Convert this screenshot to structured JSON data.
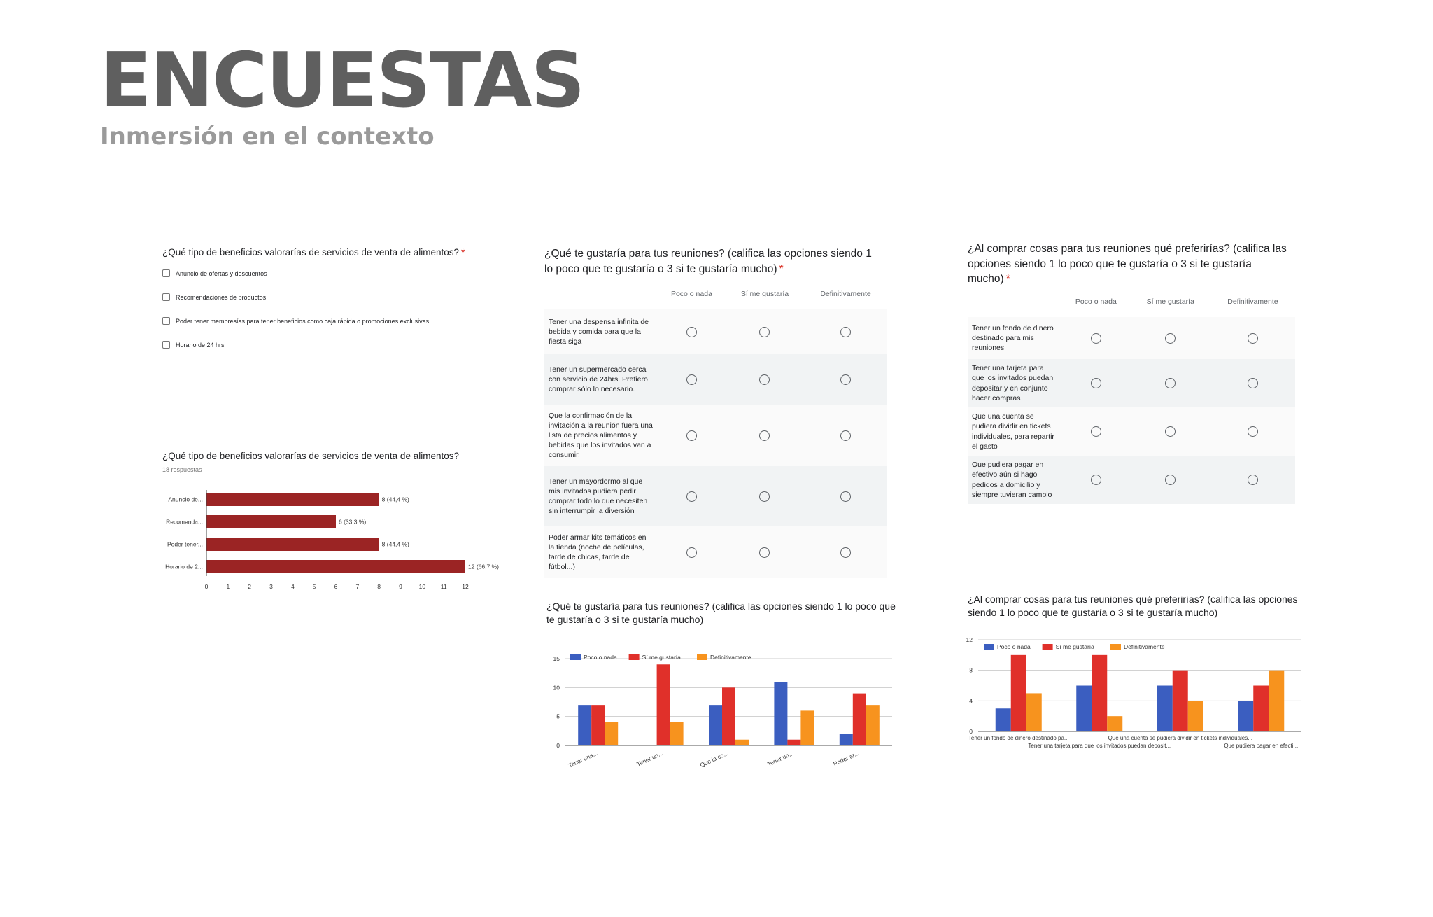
{
  "header": {
    "title": "ENCUESTAS",
    "subtitle": "Inmersión en el contexto"
  },
  "colors": {
    "title": "#5f5f5f",
    "subtitle": "#9a9a9a",
    "required": "#d93025",
    "bar_dark_red": "#9b2424",
    "blue": "#3b5ec0",
    "red": "#e0302a",
    "orange": "#f7931e"
  },
  "form_checkbox": {
    "question": "¿Qué tipo de beneficios valorarías de servicios de venta de alimentos?",
    "required_mark": "*",
    "options": [
      "Anuncio de ofertas y descuentos",
      "Recomendaciones de productos",
      "Poder tener membresías para tener beneficios como caja rápida o promociones exclusivas",
      "Horario de 24 hrs"
    ]
  },
  "form_grid_1": {
    "question": "¿Qué te gustaría para tus reuniones? (califica las opciones siendo 1 lo poco que te gustaría o 3 si te gustaría mucho)",
    "required_mark": "*",
    "columns": [
      "Poco o nada",
      "Sí me gustaría",
      "Definitivamente"
    ],
    "rows": [
      "Tener una despensa infinita de bebida y comida para que la fiesta siga",
      "Tener un supermercado cerca con servicio de 24hrs. Prefiero comprar sólo lo necesario.",
      "Que la confirmación de la invitación a la reunión fuera una lista de precios alimentos y bebidas que los invitados van a consumir.",
      "Tener un mayordormo al que mis invitados pudiera pedir comprar todo lo que necesiten sin interrumpir la diversión",
      "Poder armar kits temáticos en la tienda (noche de películas, tarde de chicas, tarde de fútbol...)"
    ]
  },
  "form_grid_2": {
    "question": "¿Al comprar cosas para tus reuniones qué preferirías? (califica las opciones siendo 1 lo poco que te gustaría o 3 si te gustaría mucho)",
    "required_mark": "*",
    "columns": [
      "Poco o nada",
      "Sí me gustaría",
      "Definitivamente"
    ],
    "rows": [
      "Tener un fondo de dinero destinado para mis reuniones",
      "Tener una tarjeta para que los invitados puedan depositar y en conjunto hacer compras",
      "Que una cuenta se pudiera dividir en tickets individuales, para repartir el gasto",
      "Que pudiera pagar en efectivo aún si hago pedidos a domicilio y siempre tuvieran cambio"
    ]
  },
  "chart_data": [
    {
      "type": "bar",
      "orientation": "horizontal",
      "title": "¿Qué tipo de beneficios valorarías de servicios de venta de alimentos?",
      "subtitle": "18 respuestas",
      "categories": [
        "Anuncio de...",
        "Recomenda...",
        "Poder tener...",
        "Horario de 2..."
      ],
      "values": [
        8,
        6,
        8,
        12
      ],
      "data_labels": [
        "8 (44,4 %)",
        "6 (33,3 %)",
        "8 (44,4 %)",
        "12 (66,7 %)"
      ],
      "xlim": [
        0,
        12
      ],
      "xticks": [
        "0",
        "1",
        "2",
        "3",
        "4",
        "5",
        "6",
        "7",
        "8",
        "9",
        "10",
        "11",
        "12"
      ],
      "grid": false
    },
    {
      "type": "bar",
      "title": "¿Qué te gustaría para tus reuniones? (califica las opciones siendo 1 lo poco que te gustaría o 3 si te gustaría mucho)",
      "categories": [
        "Tener una...",
        "Tener un...",
        "Que la co...",
        "Tener un...",
        "Poder ar..."
      ],
      "series": [
        {
          "name": "Poco o nada",
          "color": "#3b5ec0",
          "values": [
            7,
            0,
            7,
            11,
            2
          ]
        },
        {
          "name": "Sí me gustaría",
          "color": "#e0302a",
          "values": [
            7,
            14,
            10,
            1,
            9
          ]
        },
        {
          "name": "Definitivamente",
          "color": "#f7931e",
          "values": [
            4,
            4,
            1,
            6,
            7
          ]
        }
      ],
      "ylim": [
        0,
        15
      ],
      "yticks": [
        "0",
        "5",
        "10",
        "15"
      ],
      "legend": "top-left",
      "grid": true
    },
    {
      "type": "bar",
      "title": "¿Al comprar cosas para tus reuniones qué preferirías? (califica las opciones siendo 1 lo poco que te gustaría o 3 si te gustaría mucho)",
      "categories": [
        "Tener un fondo de dinero destinado pa...",
        "Tener una tarjeta para que los invitados puedan deposit...",
        "Que una cuenta se pudiera dividir en tickets individuales...",
        "Que pudiera pagar en efecti..."
      ],
      "series": [
        {
          "name": "Poco o nada",
          "color": "#3b5ec0",
          "values": [
            3,
            6,
            6,
            4
          ]
        },
        {
          "name": "Sí me gustaría",
          "color": "#e0302a",
          "values": [
            10,
            10,
            8,
            6
          ]
        },
        {
          "name": "Definitivamente",
          "color": "#f7931e",
          "values": [
            5,
            2,
            4,
            8
          ]
        }
      ],
      "ylim": [
        0,
        12
      ],
      "yticks": [
        "0",
        "4",
        "8",
        "12"
      ],
      "legend": "top-left",
      "grid": true
    }
  ]
}
